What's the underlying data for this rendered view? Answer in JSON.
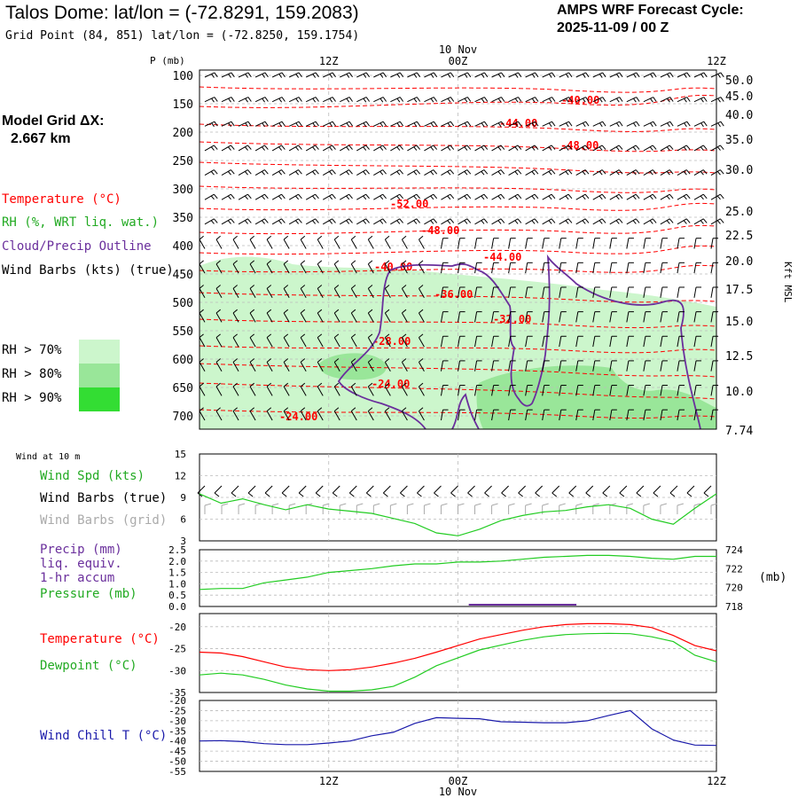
{
  "header": {
    "title": "Talos Dome:  lat/lon = (-72.8291, 159.2083)",
    "grid_point": "Grid Point (84, 851) lat/lon = (-72.8250, 159.1754)",
    "forecast_label": "AMPS WRF Forecast Cycle:",
    "forecast_cycle": "2025-11-09 / 00  Z",
    "model_grid_label": "Model Grid ΔX:",
    "model_grid_value": "2.667 km"
  },
  "legend": {
    "temperature": "Temperature (°C)",
    "rh": "RH (%, WRT liq. wat.)",
    "cloud": "Cloud/Precip Outline",
    "wind_barbs": "Wind Barbs (kts) (true)",
    "rh70": "RH > 70%",
    "rh80": "RH > 80%",
    "rh90": "RH > 90%"
  },
  "colors": {
    "temperature": "#ff0000",
    "cloud": "#6a2f9c",
    "rh70": "#ccf6cc",
    "rh80": "#99e699",
    "rh90": "#33dd33",
    "wind_speed": "#22cc22",
    "wind_grid": "#aaaaaa",
    "wind_chill": "#1a1aaa",
    "grid": "#999999"
  },
  "time_axis": {
    "top_ticks": [
      "12Z",
      "00Z",
      "12Z"
    ],
    "date_label": "10 Nov",
    "bottom_ticks": [
      "12Z",
      "00Z",
      "12Z"
    ]
  },
  "chart_data": [
    {
      "type": "cross-section",
      "title": "Vertical time section",
      "ylabel": "P (mb)",
      "y2label": "Kft MSL",
      "pressure_ticks": [
        "100",
        "150",
        "200",
        "250",
        "300",
        "350",
        "400",
        "450",
        "500",
        "550",
        "600",
        "650",
        "700"
      ],
      "height_ticks": [
        "50.0",
        "45.0",
        "40.0",
        "35.0",
        "30.0",
        "25.0",
        "22.5",
        "20.0",
        "17.5",
        "15.0",
        "12.5",
        "10.0",
        "7.74"
      ],
      "temperature_labels": [
        "-40.00",
        "-44.00",
        "-48.00",
        "-52.00",
        "-48.00",
        "-44.00",
        "-40.00",
        "-36.00",
        "-32.00",
        "-28.00",
        "-24.00",
        "-24.00"
      ]
    },
    {
      "type": "line",
      "panel_label": "Wind at 10 m",
      "legend": [
        "Wind Spd (kts)",
        "Wind Barbs (true)",
        "Wind Barbs (grid)"
      ],
      "y_ticks": [
        "15",
        "12",
        "9",
        "6",
        "3"
      ],
      "ylim": [
        3,
        15
      ],
      "x_hours": [
        0,
        2,
        4,
        6,
        8,
        10,
        12,
        14,
        16,
        18,
        20,
        22,
        24,
        26,
        28,
        30,
        32,
        34,
        36,
        38,
        40,
        42,
        44,
        46,
        48
      ],
      "wind_speed": [
        9.5,
        8.2,
        8.8,
        8.0,
        7.3,
        8.0,
        7.4,
        7.1,
        6.8,
        6.1,
        5.4,
        4.1,
        3.7,
        4.6,
        5.8,
        6.5,
        7.0,
        7.2,
        7.7,
        8.0,
        7.5,
        6.0,
        5.3,
        7.5,
        9.5
      ]
    },
    {
      "type": "line",
      "legend": [
        "Precip (mm)",
        "liq. equiv.",
        "1-hr accum",
        "Pressure (mb)"
      ],
      "y_ticks": [
        "2.5",
        "2.0",
        "1.5",
        "1.0",
        "0.5",
        "0.0"
      ],
      "y2_ticks": [
        "724",
        "722",
        "720",
        "718"
      ],
      "y2_unit": "(mb)",
      "ylim": [
        0,
        2.5
      ],
      "y2lim": [
        718,
        724
      ],
      "x_hours": [
        0,
        2,
        4,
        6,
        8,
        10,
        12,
        14,
        16,
        18,
        20,
        22,
        24,
        26,
        28,
        30,
        32,
        34,
        36,
        38,
        40,
        42,
        44,
        46,
        48
      ],
      "pressure": [
        719.8,
        719.9,
        719.9,
        720.5,
        720.8,
        721.1,
        721.6,
        721.8,
        722.0,
        722.3,
        722.5,
        722.5,
        722.7,
        722.7,
        722.8,
        723.0,
        723.2,
        723.3,
        723.4,
        723.4,
        723.3,
        723.1,
        723.0,
        723.3,
        723.3
      ]
    },
    {
      "type": "line",
      "legend": [
        "Temperature (°C)",
        "Dewpoint (°C)"
      ],
      "y_ticks": [
        "-20",
        "-25",
        "-30",
        "-35"
      ],
      "ylim": [
        -35,
        -17
      ],
      "x_hours": [
        0,
        2,
        4,
        6,
        8,
        10,
        12,
        14,
        16,
        18,
        20,
        22,
        24,
        26,
        28,
        30,
        32,
        34,
        36,
        38,
        40,
        42,
        44,
        46,
        48
      ],
      "temperature": [
        -25.8,
        -26.0,
        -26.8,
        -28.0,
        -29.2,
        -29.8,
        -30.0,
        -29.8,
        -29.2,
        -28.3,
        -27.2,
        -25.8,
        -24.3,
        -22.8,
        -21.8,
        -20.8,
        -20.0,
        -19.5,
        -19.3,
        -19.3,
        -19.5,
        -20.2,
        -22.0,
        -24.3,
        -25.5
      ],
      "dewpoint": [
        -31.0,
        -30.6,
        -31.0,
        -32.0,
        -33.3,
        -34.2,
        -34.7,
        -34.7,
        -34.4,
        -33.6,
        -31.5,
        -28.9,
        -27.1,
        -25.3,
        -24.2,
        -23.1,
        -22.3,
        -21.8,
        -21.6,
        -21.5,
        -21.6,
        -22.3,
        -23.4,
        -26.5,
        -28.0
      ]
    },
    {
      "type": "line",
      "legend": [
        "Wind Chill T (°C)"
      ],
      "y_ticks": [
        "-20",
        "-25",
        "-30",
        "-35",
        "-40",
        "-45",
        "-50",
        "-55"
      ],
      "ylim": [
        -55,
        -20
      ],
      "x_hours": [
        0,
        2,
        4,
        6,
        8,
        10,
        12,
        14,
        16,
        18,
        20,
        22,
        24,
        26,
        28,
        30,
        32,
        34,
        36,
        38,
        40,
        42,
        44,
        46,
        48
      ],
      "wind_chill": [
        -40.0,
        -39.8,
        -40.3,
        -41.3,
        -41.8,
        -41.8,
        -41.0,
        -40.0,
        -37.4,
        -35.7,
        -31.3,
        -28.5,
        -28.8,
        -29.0,
        -30.5,
        -30.7,
        -31.0,
        -31.0,
        -30.0,
        -27.4,
        -25.0,
        -34.0,
        -39.5,
        -42.0,
        -42.2
      ]
    }
  ]
}
